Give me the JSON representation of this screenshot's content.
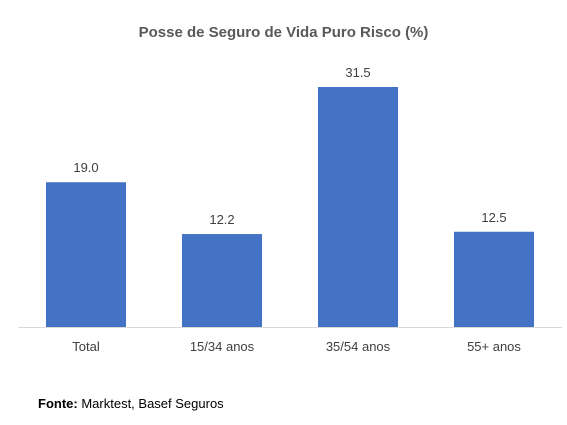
{
  "chart_data": {
    "type": "bar",
    "title": "Posse de Seguro de Vida Puro Risco (%)",
    "categories": [
      "Total",
      "15/34 anos",
      "35/54 anos",
      "55+ anos"
    ],
    "values": [
      19.0,
      12.2,
      31.5,
      12.5
    ],
    "value_labels": [
      "19.0",
      "12.2",
      "31.5",
      "12.5"
    ],
    "xlabel": "",
    "ylabel": "",
    "ylim": [
      0,
      31.5
    ],
    "grid": false,
    "legend": "none",
    "bar_color": "#4472C4",
    "axis_color": "#D9D9D9"
  },
  "source": {
    "label": "Fonte:",
    "text": "Marktest, Basef Seguros"
  }
}
